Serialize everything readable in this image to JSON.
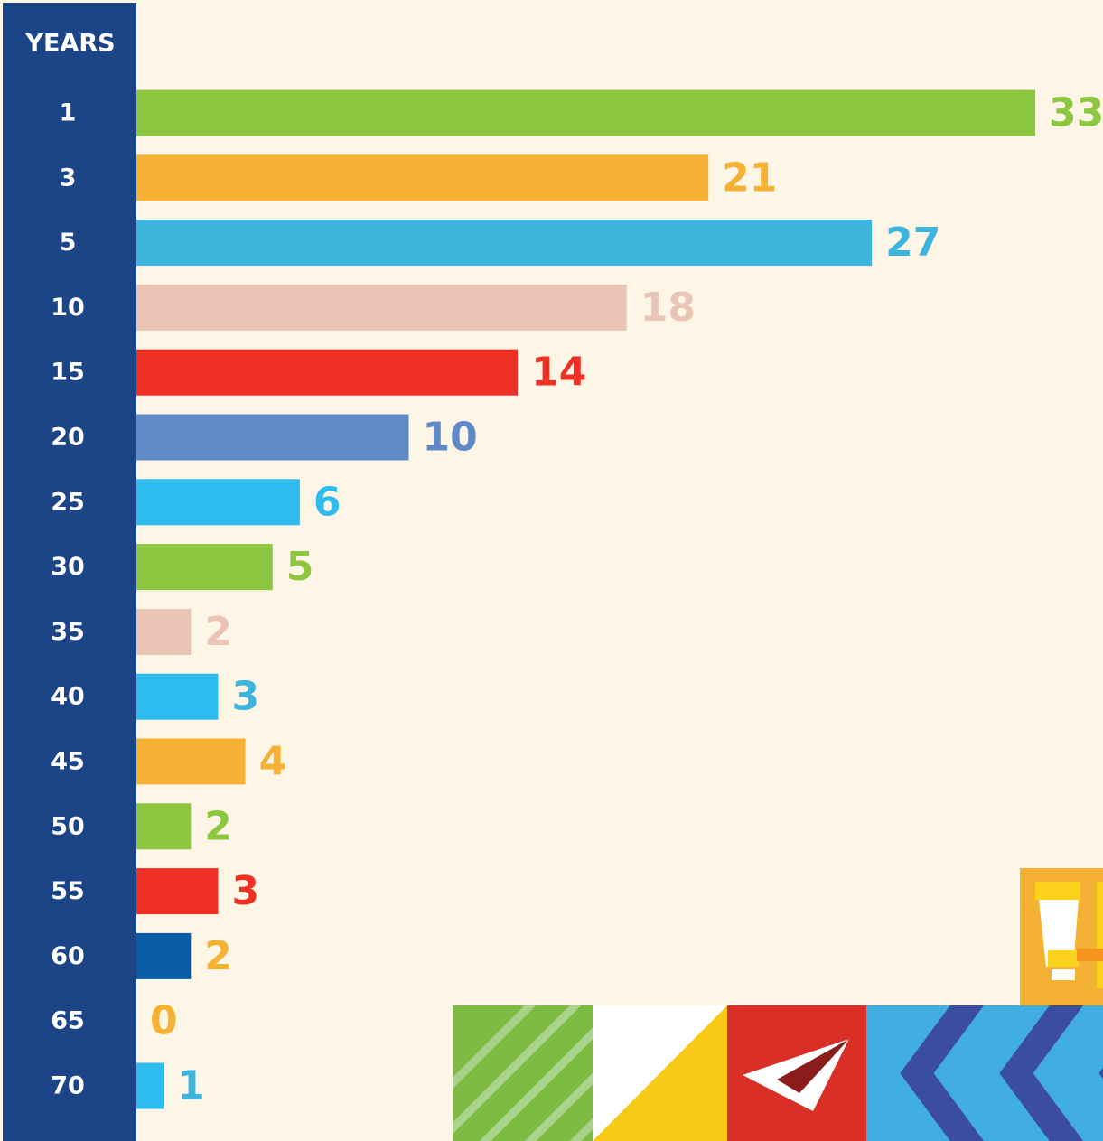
{
  "chart_data": {
    "type": "bar",
    "orientation": "horizontal",
    "ylabel": "YEARS",
    "categories": [
      "1",
      "3",
      "5",
      "10",
      "15",
      "20",
      "25",
      "30",
      "35",
      "40",
      "45",
      "50",
      "55",
      "60",
      "65",
      "70"
    ],
    "values": [
      33,
      21,
      27,
      18,
      14,
      10,
      6,
      5,
      2,
      3,
      4,
      2,
      3,
      2,
      0,
      1
    ],
    "colors": [
      "#8dc641",
      "#f5b133",
      "#3db4dc",
      "#eac4b4",
      "#ee3124",
      "#6089c6",
      "#2ebcef",
      "#8dc641",
      "#eac4b4",
      "#2ebcef",
      "#f5b133",
      "#8dc641",
      "#ee3124",
      "#0a5ea8",
      "#f5b133",
      "#2ebcef"
    ],
    "label_colors": [
      "#8dc641",
      "#f5b133",
      "#3db4dc",
      "#eac4b4",
      "#ee3124",
      "#6089c6",
      "#2ebcef",
      "#8dc641",
      "#eac4b4",
      "#3db4dc",
      "#f5b133",
      "#8dc641",
      "#ee3124",
      "#f5b133",
      "#f5b133",
      "#3db4dc"
    ]
  }
}
